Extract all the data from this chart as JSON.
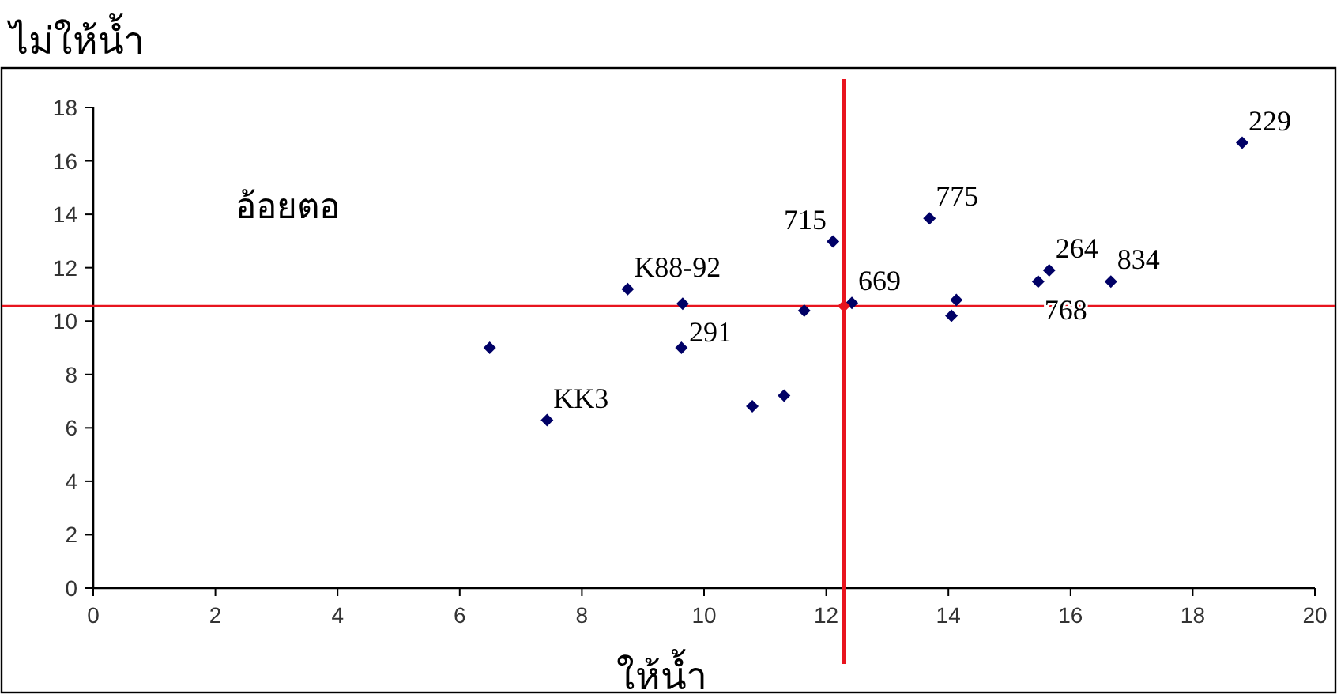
{
  "chart_data": {
    "type": "scatter",
    "xlabel": "ให้น้ำ",
    "ylabel": "ไม่ให้น้ำ",
    "xlim": [
      0,
      20
    ],
    "ylim": [
      0,
      18
    ],
    "xticks": [
      0,
      2,
      4,
      6,
      8,
      10,
      12,
      14,
      16,
      18,
      20
    ],
    "yticks": [
      0,
      2,
      4,
      6,
      8,
      10,
      12,
      14,
      16,
      18
    ],
    "grid": false,
    "marker": "diamond",
    "series": [
      {
        "color": "#000066",
        "x": [
          6.49,
          8.75,
          9.63,
          9.65,
          7.43,
          10.79,
          11.31,
          11.64,
          12.11,
          12.42,
          13.69,
          14.13,
          14.05,
          15.47,
          15.65,
          16.66,
          18.81
        ],
        "values": [
          9.0,
          11.2,
          9.0,
          10.65,
          6.29,
          6.81,
          7.21,
          10.39,
          12.98,
          10.68,
          13.85,
          10.79,
          10.2,
          11.48,
          11.9,
          11.48,
          16.68
        ]
      },
      {
        "color": "#e8141e",
        "x": [
          12.29
        ],
        "values": [
          10.56
        ]
      }
    ],
    "ref_lines": [
      {
        "axis": "x",
        "value": 12.29,
        "color": "#e8141e"
      },
      {
        "axis": "y",
        "value": 10.56,
        "color": "#e8141e"
      }
    ],
    "annotations": [
      "อ้อยตอ",
      {
        "text": "229",
        "x": 18.81,
        "y": 16.68
      },
      {
        "text": "775",
        "x": 13.69,
        "y": 13.85
      },
      {
        "text": "715",
        "x": 12.11,
        "y": 12.98
      },
      {
        "text": "264",
        "x": 15.65,
        "y": 11.9
      },
      {
        "text": "834",
        "x": 16.66,
        "y": 11.48
      },
      {
        "text": "768",
        "x": 15.47,
        "y": 11.48
      },
      {
        "text": "669",
        "x": 12.42,
        "y": 10.68
      },
      {
        "text": "291",
        "x": 9.65,
        "y": 10.65
      },
      {
        "text": "K88-92",
        "x": 8.75,
        "y": 11.2
      },
      {
        "text": "KK3",
        "x": 7.43,
        "y": 6.29
      }
    ]
  }
}
